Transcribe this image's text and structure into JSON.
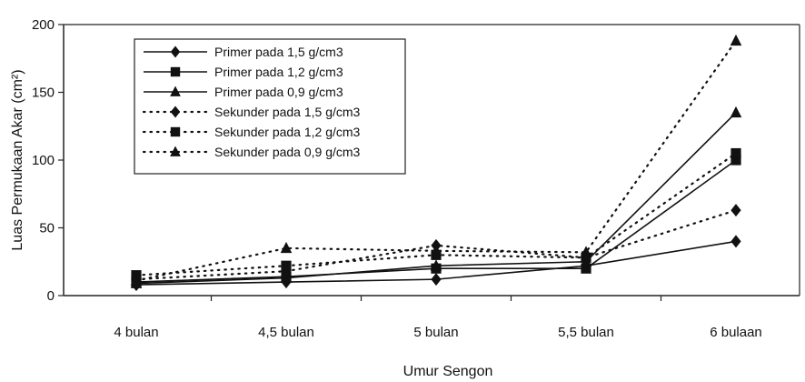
{
  "chart_data": {
    "type": "line",
    "title": "",
    "xlabel": "Umur Sengon",
    "ylabel": "Luas Permukaan Akar (cm²)",
    "categories": [
      "4 bulan",
      "4,5 bulan",
      "5 bulan",
      "5,5 bulan",
      "6 bulaan"
    ],
    "ylim": [
      0,
      200
    ],
    "yticks": [
      0,
      50,
      100,
      150,
      200
    ],
    "grid": false,
    "legend_position": "top-left",
    "series": [
      {
        "name": "Primer pada 1,5 g/cm3",
        "marker": "diamond",
        "dash": "solid",
        "values": [
          8,
          10,
          12,
          22,
          40
        ]
      },
      {
        "name": "Primer pada 1,2 g/cm3",
        "marker": "square",
        "dash": "solid",
        "values": [
          10,
          14,
          20,
          20,
          100
        ]
      },
      {
        "name": "Primer pada 0,9 g/cm3",
        "marker": "triangle",
        "dash": "solid",
        "values": [
          9,
          13,
          22,
          25,
          135
        ]
      },
      {
        "name": "Sekunder pada 1,5 g/cm3",
        "marker": "diamond",
        "dash": "dotted",
        "values": [
          12,
          18,
          37,
          28,
          63
        ]
      },
      {
        "name": "Sekunder pada 1,2 g/cm3",
        "marker": "square",
        "dash": "dotted",
        "values": [
          15,
          22,
          30,
          28,
          105
        ]
      },
      {
        "name": "Sekunder pada 0,9 g/cm3",
        "marker": "triangle",
        "dash": "dotted",
        "values": [
          11,
          35,
          33,
          32,
          188
        ]
      }
    ]
  }
}
